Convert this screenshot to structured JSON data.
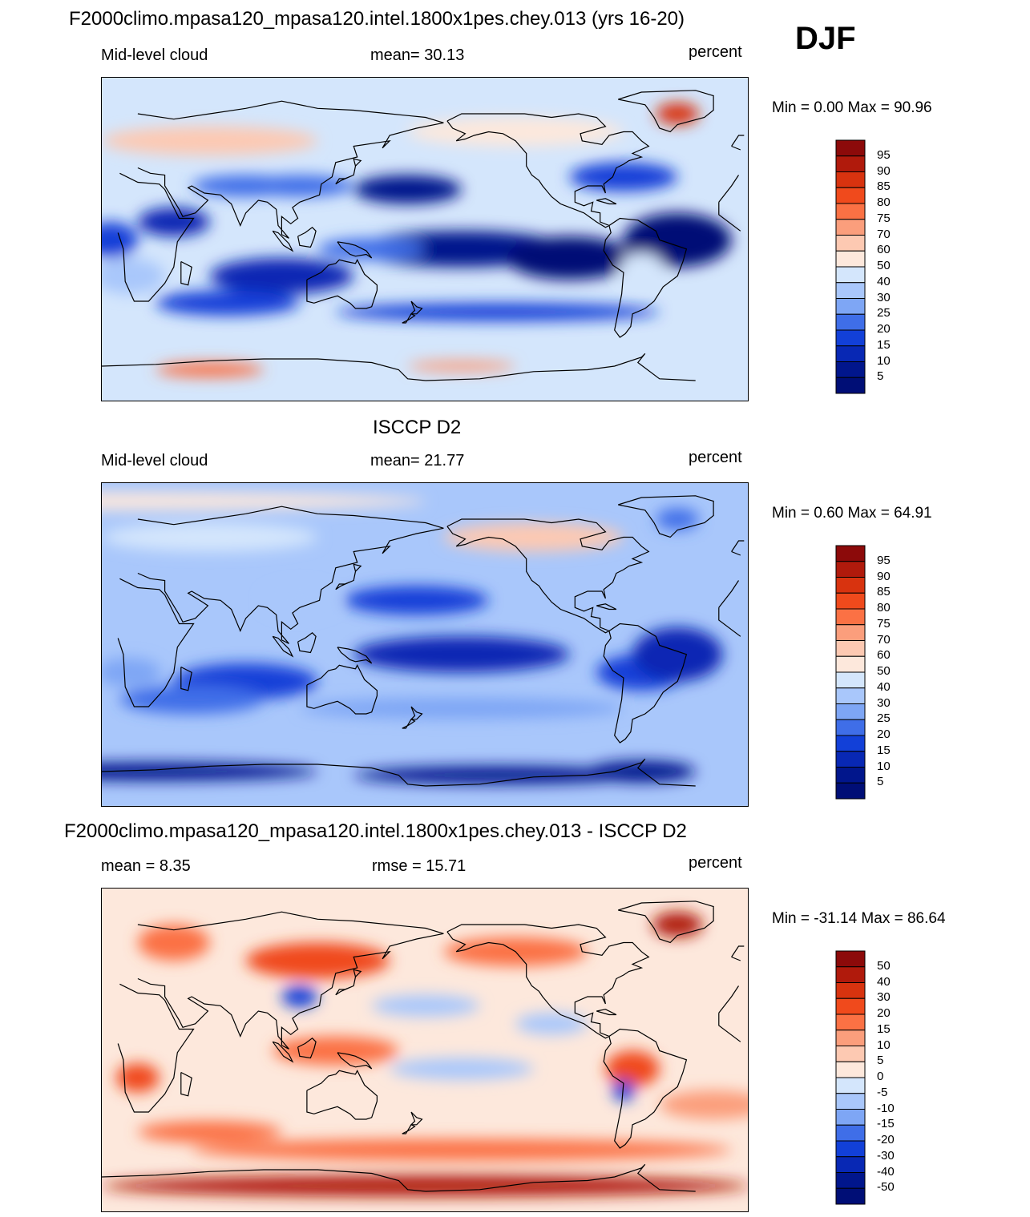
{
  "header": {
    "model_title": "F2000climo.mpasa120_mpasa120.intel.1800x1pes.chey.013 (yrs 16-20)",
    "season": "DJF"
  },
  "chart_data": [
    {
      "type": "heatmap",
      "name": "model",
      "title": "F2000climo.mpasa120_mpasa120.intel.1800x1pes.chey.013 (yrs 16-20)",
      "left_label": "Mid-level cloud",
      "center_label": "mean=  30.13",
      "units": "percent",
      "minmax": "Min =   0.00 Max =  90.96",
      "colorbar": {
        "levels": [
          "95",
          "90",
          "85",
          "80",
          "75",
          "70",
          "60",
          "50",
          "40",
          "30",
          "25",
          "20",
          "15",
          "10",
          "5"
        ],
        "colors": [
          "#8c0a0a",
          "#b01a0c",
          "#d8330f",
          "#f04a1c",
          "#fb7144",
          "#fb9e7c",
          "#fdc9b2",
          "#fde8dc",
          "#d4e6fc",
          "#a9c7fb",
          "#7ea6f5",
          "#3f6ee8",
          "#1240d8",
          "#0828b4",
          "#01168c",
          "#000e76"
        ]
      },
      "background_level": 8
    },
    {
      "type": "heatmap",
      "name": "obs",
      "title": "ISCCP D2",
      "left_label": "Mid-level cloud",
      "center_label": "mean=  21.77",
      "units": "percent",
      "minmax": "Min =   0.60 Max =  64.91",
      "colorbar": {
        "levels": [
          "95",
          "90",
          "85",
          "80",
          "75",
          "70",
          "60",
          "50",
          "40",
          "30",
          "25",
          "20",
          "15",
          "10",
          "5"
        ],
        "colors": [
          "#8c0a0a",
          "#b01a0c",
          "#d8330f",
          "#f04a1c",
          "#fb7144",
          "#fb9e7c",
          "#fdc9b2",
          "#fde8dc",
          "#d4e6fc",
          "#a9c7fb",
          "#7ea6f5",
          "#3f6ee8",
          "#1240d8",
          "#0828b4",
          "#01168c",
          "#000e76"
        ]
      },
      "background_level": 9
    },
    {
      "type": "heatmap",
      "name": "diff",
      "title": "F2000climo.mpasa120_mpasa120.intel.1800x1pes.chey.013 - ISCCP D2",
      "left_label": "mean =   8.35",
      "center_label": "rmse =  15.71",
      "units": "percent",
      "minmax": "Min = -31.14 Max =  86.64",
      "colorbar": {
        "levels": [
          "50",
          "40",
          "30",
          "20",
          "15",
          "10",
          "5",
          "0",
          "-5",
          "-10",
          "-15",
          "-20",
          "-30",
          "-40",
          "-50"
        ],
        "colors": [
          "#8c0a0a",
          "#b01a0c",
          "#d8330f",
          "#f04a1c",
          "#fb7144",
          "#fb9e7c",
          "#fdc9b2",
          "#fde8dc",
          "#d4e6fc",
          "#a9c7fb",
          "#7ea6f5",
          "#3f6ee8",
          "#1240d8",
          "#0828b4",
          "#01168c",
          "#000e76"
        ]
      },
      "background_level": 7
    }
  ]
}
